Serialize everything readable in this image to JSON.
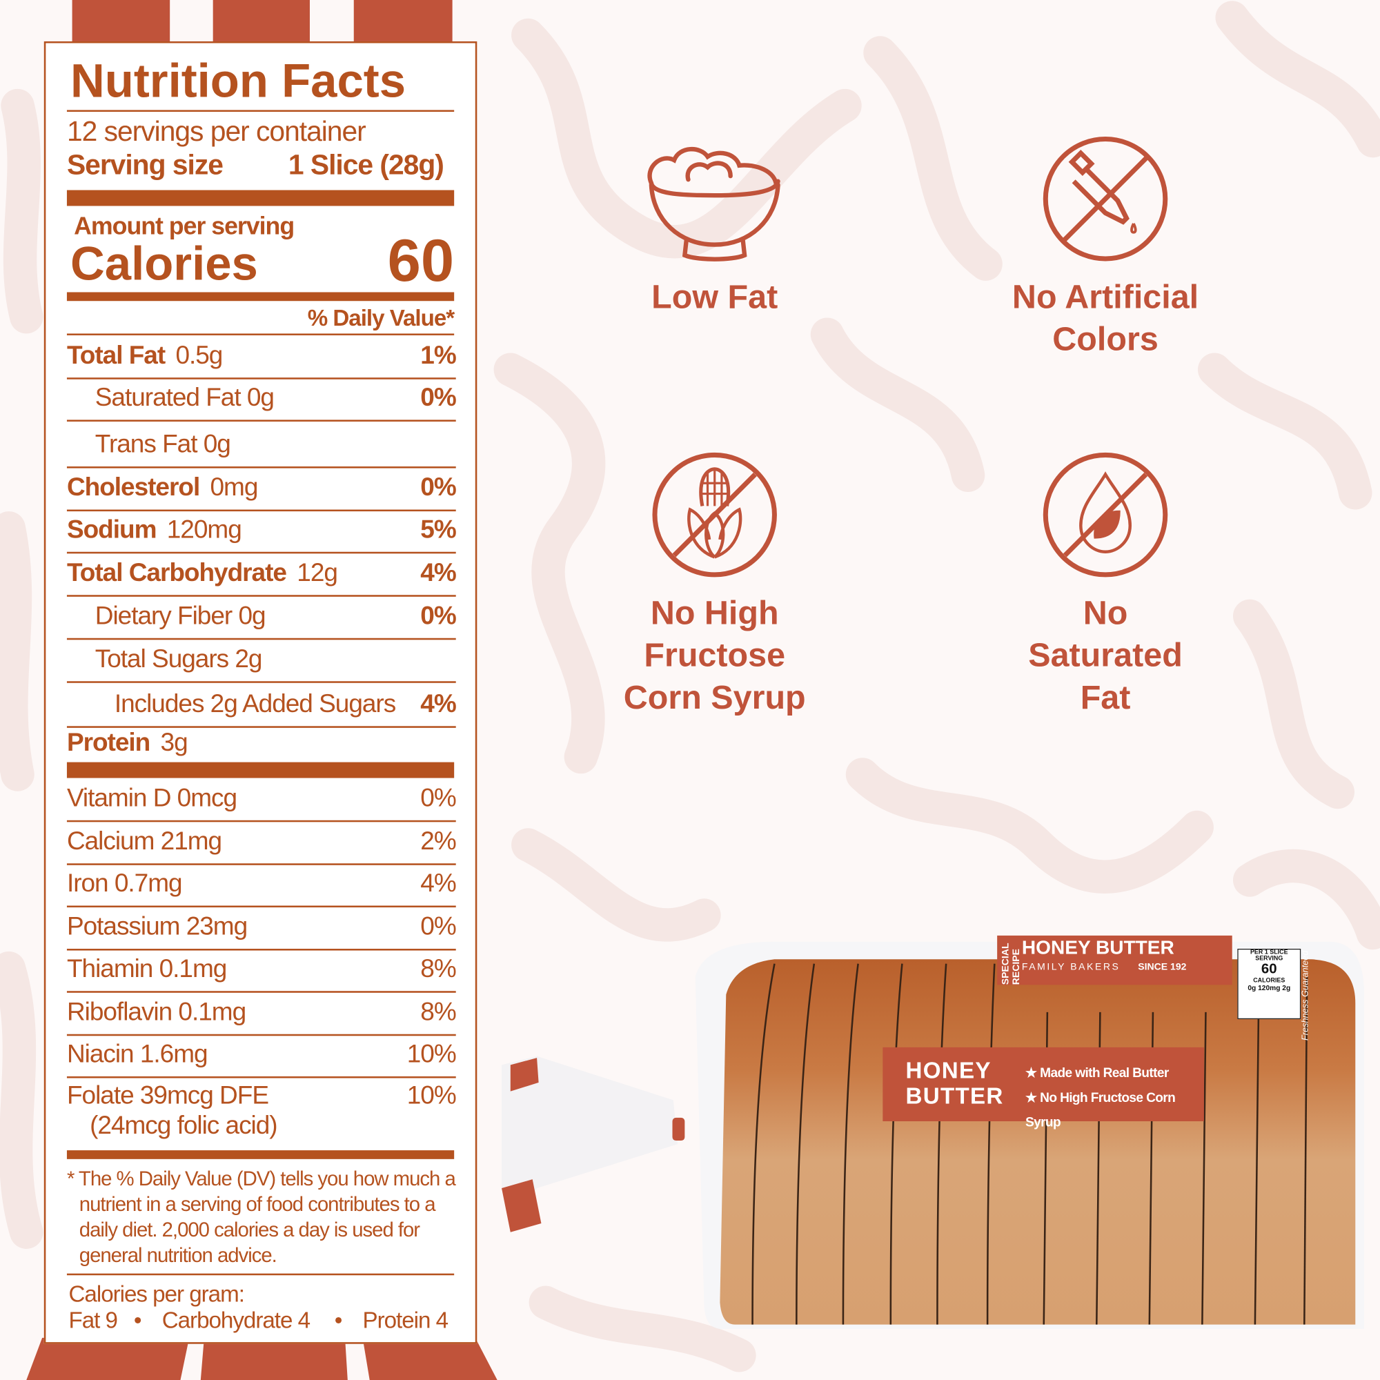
{
  "colors": {
    "panel_text": "#b5521f",
    "accent": "#c0533a",
    "background": "#fdf8f7"
  },
  "nutrition": {
    "title": "Nutrition Facts",
    "servings": "12 servings per container",
    "serving_size_label": "Serving size",
    "serving_size_value": "1 Slice (28g)",
    "amount_per_serving": "Amount per serving",
    "calories_label": "Calories",
    "calories_value": "60",
    "dv_header": "% Daily Value*",
    "rows": [
      {
        "label": "Total Fat",
        "amount": "0.5g",
        "dv": "1%",
        "bold": true,
        "indent": 0
      },
      {
        "label": "Saturated Fat 0g",
        "amount": "",
        "dv": "0%",
        "bold": false,
        "indent": 1
      },
      {
        "label": "Trans Fat 0g",
        "amount": "",
        "dv": "",
        "bold": false,
        "indent": 1
      },
      {
        "label": "Cholesterol",
        "amount": "0mg",
        "dv": "0%",
        "bold": true,
        "indent": 0
      },
      {
        "label": "Sodium",
        "amount": "120mg",
        "dv": "5%",
        "bold": true,
        "indent": 0
      },
      {
        "label": "Total Carbohydrate",
        "amount": "12g",
        "dv": "4%",
        "bold": true,
        "indent": 0
      },
      {
        "label": "Dietary Fiber 0g",
        "amount": "",
        "dv": "0%",
        "bold": false,
        "indent": 1
      },
      {
        "label": "Total Sugars 2g",
        "amount": "",
        "dv": "",
        "bold": false,
        "indent": 1
      },
      {
        "label": "Includes 2g Added Sugars",
        "amount": "",
        "dv": "4%",
        "bold": false,
        "indent": 2
      },
      {
        "label": "Protein",
        "amount": "3g",
        "dv": "",
        "bold": true,
        "indent": 0
      }
    ],
    "micros": [
      {
        "label": "Vitamin D 0mcg",
        "dv": "0%"
      },
      {
        "label": "Calcium 21mg",
        "dv": "2%"
      },
      {
        "label": "Iron 0.7mg",
        "dv": "4%"
      },
      {
        "label": "Potassium 23mg",
        "dv": "0%"
      },
      {
        "label": "Thiamin 0.1mg",
        "dv": "8%"
      },
      {
        "label": "Riboflavin 0.1mg",
        "dv": "8%"
      },
      {
        "label": "Niacin 1.6mg",
        "dv": "10%"
      }
    ],
    "folate": {
      "label": "Folate 39mcg DFE",
      "sub": "(24mcg folic acid)",
      "dv": "10%"
    },
    "footnote": [
      "* The % Daily Value (DV) tells you how much a",
      "nutrient in a serving of food contributes to a",
      "daily diet. 2,000 calories a day is used for",
      "general nutrition advice."
    ],
    "cal_per_gram_label": "Calories per gram:",
    "cal_per_gram": {
      "fat": "Fat 9",
      "carb": "Carbohydrate 4",
      "protein": "Protein 4",
      "sep": "•"
    }
  },
  "claims": [
    {
      "icon": "bowl-icon",
      "lines": [
        "Low Fat"
      ]
    },
    {
      "icon": "no-dropper-icon",
      "lines": [
        "No Artificial",
        "Colors"
      ]
    },
    {
      "icon": "no-corn-icon",
      "lines": [
        "No High",
        "Fructose",
        "Corn Syrup"
      ]
    },
    {
      "icon": "no-oil-drop-icon",
      "lines": [
        "No",
        "Saturated",
        "Fat"
      ]
    }
  ],
  "package": {
    "front_label_name": [
      "HONEY",
      "BUTTER"
    ],
    "front_label_bullets": [
      "★ Made with Real Butter",
      "★ No High Fructose Corn Syrup"
    ],
    "top_label": {
      "special": "SPECIAL RECIPE",
      "name": [
        "HONEY",
        "BUTTER"
      ],
      "family": "FAMILY BAKERS",
      "since": "SINCE 192"
    },
    "facts_strip": {
      "per": "PER 1 SLICE SERVING",
      "calories": "60",
      "calories_label": "CALORIES",
      "sat_fat": "0g",
      "sodium": "120mg",
      "sugars": "2g"
    },
    "freshness": "Freshness Guaranteed"
  }
}
